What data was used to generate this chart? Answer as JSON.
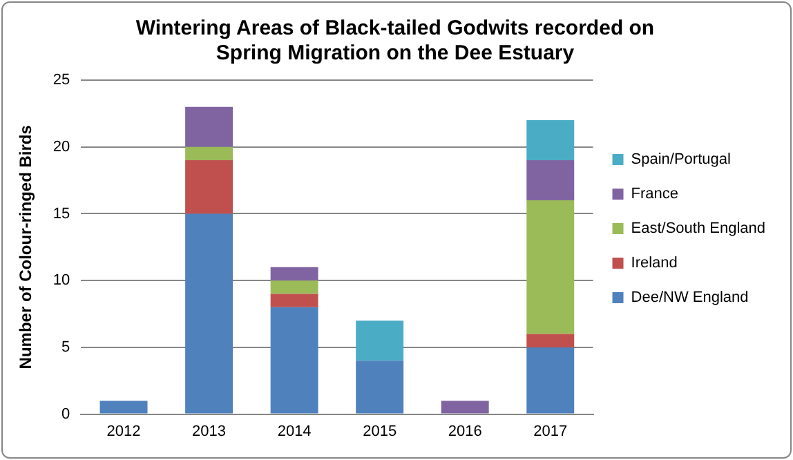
{
  "chart_data": {
    "type": "bar",
    "title": "Wintering Areas of Black-tailed Godwits recorded on Spring Migration on the Dee Estuary",
    "ylabel": "Number of Colour-ringed Birds",
    "categories": [
      "2012",
      "2013",
      "2014",
      "2015",
      "2016",
      "2017"
    ],
    "series": [
      {
        "name": "Dee/NW England",
        "color": "#4f81bd",
        "values": [
          1,
          15,
          8,
          4,
          0,
          5
        ]
      },
      {
        "name": "Ireland",
        "color": "#c0504d",
        "values": [
          0,
          4,
          1,
          0,
          0,
          1
        ]
      },
      {
        "name": "East/South England",
        "color": "#9bbb59",
        "values": [
          0,
          1,
          1,
          0,
          0,
          10
        ]
      },
      {
        "name": "France",
        "color": "#8064a2",
        "values": [
          0,
          3,
          1,
          0,
          1,
          3
        ]
      },
      {
        "name": "Spain/Portugal",
        "color": "#4bacc6",
        "values": [
          0,
          0,
          0,
          3,
          0,
          3
        ]
      }
    ],
    "stacked": true,
    "ylim": [
      0,
      25
    ],
    "yticks": [
      0,
      5,
      10,
      15,
      20,
      25
    ],
    "grid": "y",
    "legend": "right"
  }
}
